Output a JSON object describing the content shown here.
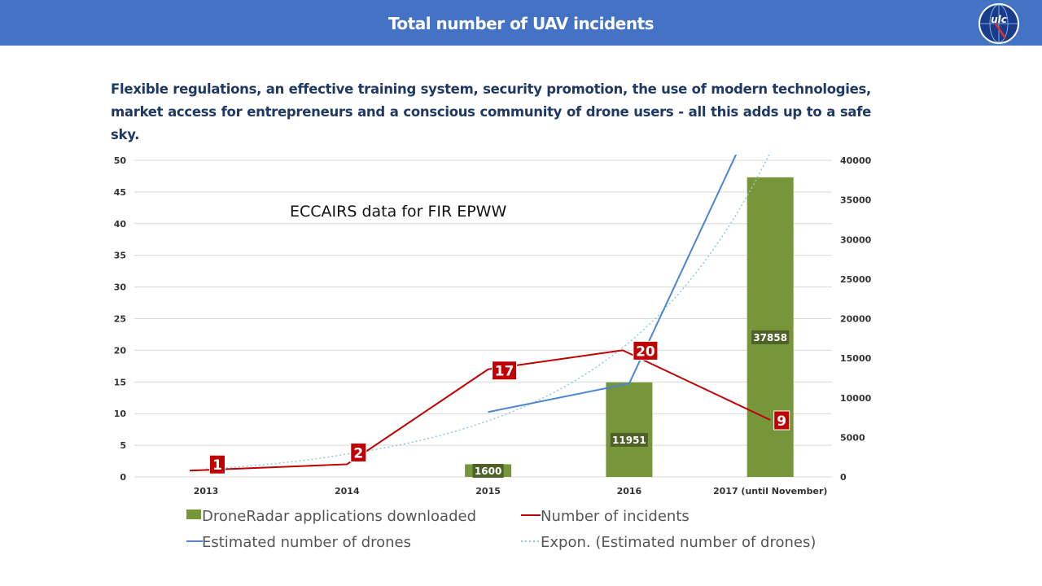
{
  "header": {
    "title": "Total number of UAV incidents",
    "logo_text": "ULC"
  },
  "subtitle": "Flexible regulations, an effective training system, security promotion, the use of modern technologies, market access for entrepreneurs and a conscious community of drone users - all this adds up to a safe sky.",
  "colors": {
    "header": "#4472c4",
    "bars": "#77963a",
    "bar_label_bg": "#4e6128",
    "incidents": "#c00000",
    "estimated": "#4a86d0",
    "expon": "#8fc8e0"
  },
  "chart_data": {
    "type": "bar",
    "title": "",
    "annotation": "ECCAIRS data for FIR EPWW",
    "categories": [
      "2013",
      "2014",
      "2015",
      "2016",
      "2017 (until November)"
    ],
    "y_left": {
      "range": [
        0,
        50
      ],
      "ticks": [
        "0",
        "5",
        "10",
        "15",
        "20",
        "25",
        "30",
        "35",
        "40",
        "45",
        "50"
      ]
    },
    "y_right": {
      "range": [
        0,
        40000
      ],
      "ticks": [
        "0",
        "5000",
        "10000",
        "15000",
        "20000",
        "25000",
        "30000",
        "35000",
        "40000"
      ]
    },
    "grid": true,
    "legend_position": "bottom",
    "series": [
      {
        "name": "DroneRadar applications downloaded",
        "type": "bar",
        "axis": "right",
        "values": [
          null,
          null,
          1600,
          11951,
          37858
        ],
        "labels": [
          "",
          "",
          "1600",
          "11951",
          "37858"
        ]
      },
      {
        "name": "Number of incidents",
        "type": "line",
        "axis": "left",
        "values": [
          1,
          2,
          17,
          20,
          9
        ],
        "labels": [
          "1",
          "2",
          "17",
          "20",
          "9"
        ]
      },
      {
        "name": "Estimated number of drones",
        "type": "line",
        "axis": "right",
        "values": [
          null,
          null,
          8200,
          11800,
          50000
        ]
      },
      {
        "name": "Expon.  (Estimated number of drones)",
        "type": "trend",
        "axis": "right",
        "values": [
          1000,
          2900,
          7100,
          17000,
          41000
        ]
      }
    ]
  }
}
